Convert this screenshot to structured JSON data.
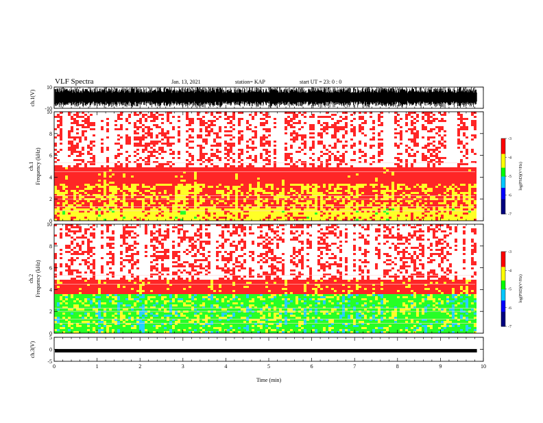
{
  "header": {
    "title": "VLF Spectra",
    "date": "Jan. 13, 2021",
    "station": "station= KAP",
    "start": "start  UT  =   23: 0  : 0"
  },
  "colors": {
    "background": "#ffffff",
    "axis": "#000000",
    "colormap": [
      "#000080",
      "#0000ff",
      "#00c8ff",
      "#00ff00",
      "#ffff00",
      "#ff0000",
      "#ffffff"
    ]
  },
  "chart_data": [
    {
      "type": "line",
      "name": "ch1-waveform",
      "ylabel": "ch.1(V)",
      "ylim": [
        -10,
        10
      ],
      "yticks": [
        10,
        -10
      ],
      "xlim": [
        0,
        10
      ],
      "data_extent_max": 9.85
    },
    {
      "type": "heatmap",
      "name": "ch1-spectrogram",
      "ylabel": "ch.1\nFrequency  (kHz)",
      "ylim": [
        0,
        10
      ],
      "yticks": [
        0,
        2,
        4,
        6,
        8,
        10
      ],
      "xlim": [
        0,
        10
      ],
      "colorbar": {
        "label": "log(PSD)(V²/Hz)",
        "range": [
          -7,
          -3
        ],
        "ticks": [
          -3,
          -4,
          -5,
          -6,
          -7
        ]
      },
      "bands": [
        {
          "fmin": 0,
          "fmax": 1.2,
          "level": -4.0
        },
        {
          "fmin": 1.2,
          "fmax": 3.4,
          "level": -3.7
        },
        {
          "fmin": 3.4,
          "fmax": 5.0,
          "level": -3.3
        },
        {
          "fmin": 5.0,
          "fmax": 10,
          "level": -3.0
        }
      ]
    },
    {
      "type": "heatmap",
      "name": "ch2-spectrogram",
      "ylabel": "ch.2\nFrequency  (kHz)",
      "ylim": [
        0,
        10
      ],
      "yticks": [
        0,
        2,
        4,
        6,
        8,
        10
      ],
      "xlim": [
        0,
        10
      ],
      "colorbar": {
        "label": "log(PSD)(V²/Hz)",
        "range": [
          -7,
          -3
        ],
        "ticks": [
          -3,
          -4,
          -5,
          -6,
          -7
        ]
      },
      "bands": [
        {
          "fmin": 0,
          "fmax": 3.6,
          "level": -4.7
        },
        {
          "fmin": 3.6,
          "fmax": 5.0,
          "level": -3.5
        },
        {
          "fmin": 5.0,
          "fmax": 10,
          "level": -3.0
        }
      ]
    },
    {
      "type": "line",
      "name": "ch3-waveform",
      "ylabel": "ch.3(V)",
      "ylim": [
        -5,
        5
      ],
      "yticks": [
        5,
        0,
        -5
      ],
      "xlim": [
        0,
        10
      ],
      "xticks": [
        0,
        1,
        2,
        3,
        4,
        5,
        6,
        7,
        8,
        9,
        10
      ],
      "xlabel": "Time  (min)",
      "level": -0.6,
      "data_extent_max": 9.85
    }
  ]
}
